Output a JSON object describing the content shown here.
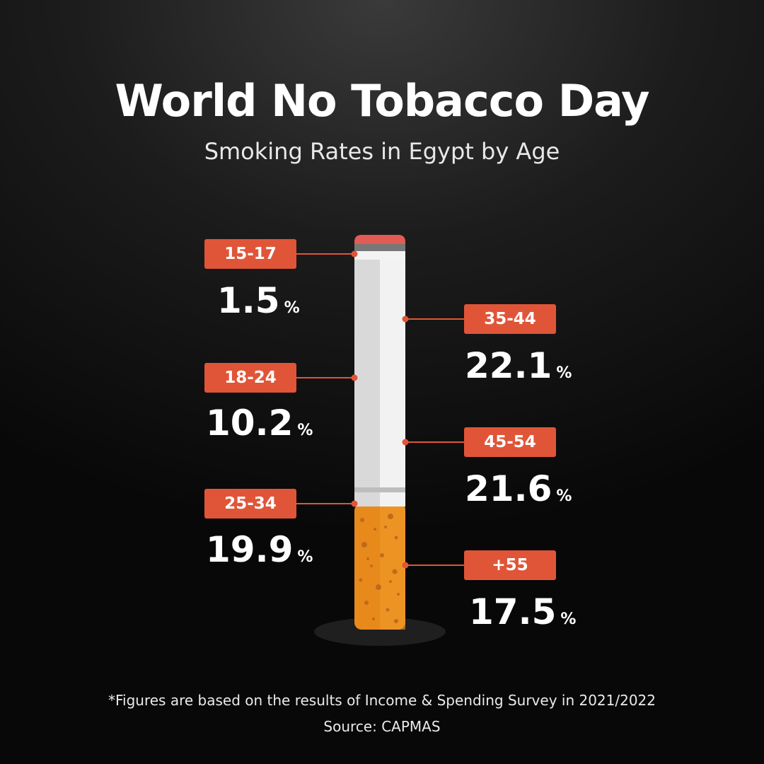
{
  "header": {
    "title": "World No Tobacco Day",
    "subtitle": "Smoking Rates in Egypt by Age"
  },
  "footer": {
    "note": "*Figures are based on the results of Income & Spending Survey in 2021/2022",
    "source": "Source: CAPMAS"
  },
  "colors": {
    "badge": "#e05538",
    "filter": "#e8891c",
    "paper": "#f0f0f0",
    "tip": "#e25c55",
    "background": "#111111"
  },
  "chart_data": {
    "type": "bar",
    "title": "World No Tobacco Day",
    "subtitle": "Smoking Rates in Egypt by Age",
    "unit": "%",
    "categories": [
      "15-17",
      "18-24",
      "25-34",
      "35-44",
      "45-54",
      "+55"
    ],
    "values": [
      1.5,
      10.2,
      19.9,
      22.1,
      21.6,
      17.5
    ],
    "value_labels": [
      "1.5",
      "10.2",
      "19.9",
      "22.1",
      "21.6",
      "17.5"
    ],
    "pct_symbol": "%"
  }
}
